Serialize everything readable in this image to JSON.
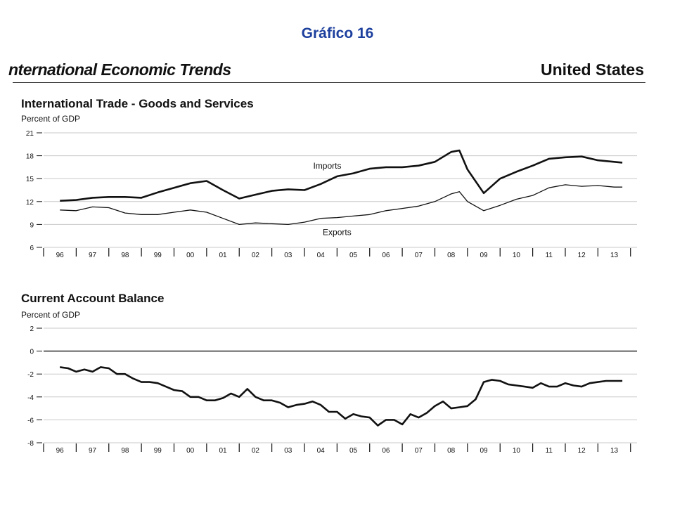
{
  "slide": {
    "title": "Gráfico 16"
  },
  "header": {
    "left": "nternational Economic Trends",
    "right": "United States"
  },
  "chart_data": [
    {
      "type": "line",
      "title": "International Trade - Goods and Services",
      "ylabel": "Percent of GDP",
      "ylim": [
        6,
        21
      ],
      "yticks": [
        6,
        9,
        12,
        15,
        18,
        21
      ],
      "xlim": [
        1995.5,
        2013.7
      ],
      "xticks": [
        "96",
        "97",
        "98",
        "99",
        "00",
        "01",
        "02",
        "03",
        "04",
        "05",
        "06",
        "07",
        "08",
        "09",
        "10",
        "11",
        "12",
        "13"
      ],
      "grid": true,
      "annotations": [
        {
          "text": "Imports",
          "x": 2004.2,
          "y": 16.3
        },
        {
          "text": "Exports",
          "x": 2004.5,
          "y": 7.6
        }
      ],
      "series": [
        {
          "name": "Imports",
          "style": "thick",
          "x": [
            1996.0,
            1996.5,
            1997.0,
            1997.5,
            1998.0,
            1998.5,
            1999.0,
            1999.5,
            2000.0,
            2000.5,
            2001.0,
            2001.5,
            2002.0,
            2002.5,
            2003.0,
            2003.5,
            2004.0,
            2004.5,
            2005.0,
            2005.5,
            2006.0,
            2006.5,
            2007.0,
            2007.5,
            2008.0,
            2008.25,
            2008.5,
            2009.0,
            2009.5,
            2010.0,
            2010.5,
            2011.0,
            2011.5,
            2012.0,
            2012.5,
            2013.0,
            2013.25
          ],
          "y": [
            12.1,
            12.2,
            12.5,
            12.6,
            12.6,
            12.5,
            13.2,
            13.8,
            14.4,
            14.7,
            13.5,
            12.4,
            12.9,
            13.4,
            13.6,
            13.5,
            14.3,
            15.3,
            15.7,
            16.3,
            16.5,
            16.5,
            16.7,
            17.2,
            18.5,
            18.7,
            16.2,
            13.1,
            15.0,
            15.9,
            16.7,
            17.6,
            17.8,
            17.9,
            17.4,
            17.2,
            17.1
          ]
        },
        {
          "name": "Exports",
          "style": "thin",
          "x": [
            1996.0,
            1996.5,
            1997.0,
            1997.5,
            1998.0,
            1998.5,
            1999.0,
            1999.5,
            2000.0,
            2000.5,
            2001.0,
            2001.5,
            2002.0,
            2002.5,
            2003.0,
            2003.5,
            2004.0,
            2004.5,
            2005.0,
            2005.5,
            2006.0,
            2006.5,
            2007.0,
            2007.5,
            2008.0,
            2008.25,
            2008.5,
            2009.0,
            2009.5,
            2010.0,
            2010.5,
            2011.0,
            2011.5,
            2012.0,
            2012.5,
            2013.0,
            2013.25
          ],
          "y": [
            10.9,
            10.8,
            11.3,
            11.2,
            10.5,
            10.3,
            10.3,
            10.6,
            10.9,
            10.6,
            9.8,
            9.0,
            9.2,
            9.1,
            9.0,
            9.3,
            9.8,
            9.9,
            10.1,
            10.3,
            10.8,
            11.1,
            11.4,
            12.0,
            13.0,
            13.3,
            12.0,
            10.8,
            11.5,
            12.3,
            12.8,
            13.8,
            14.2,
            14.0,
            14.1,
            13.9,
            13.9
          ]
        }
      ]
    },
    {
      "type": "line",
      "title": "Current Account Balance",
      "ylabel": "Percent of GDP",
      "ylim": [
        -8,
        2
      ],
      "yticks": [
        -8,
        -6,
        -4,
        -2,
        0,
        2
      ],
      "xlim": [
        1995.5,
        2013.7
      ],
      "xticks": [
        "96",
        "97",
        "98",
        "99",
        "00",
        "01",
        "02",
        "03",
        "04",
        "05",
        "06",
        "07",
        "08",
        "09",
        "10",
        "11",
        "12",
        "13"
      ],
      "grid": true,
      "zero_line": true,
      "series": [
        {
          "name": "Current Account Balance",
          "style": "thick",
          "x": [
            1996.0,
            1996.25,
            1996.5,
            1996.75,
            1997.0,
            1997.25,
            1997.5,
            1997.75,
            1998.0,
            1998.25,
            1998.5,
            1998.75,
            1999.0,
            1999.25,
            1999.5,
            1999.75,
            2000.0,
            2000.25,
            2000.5,
            2000.75,
            2001.0,
            2001.25,
            2001.5,
            2001.75,
            2002.0,
            2002.25,
            2002.5,
            2002.75,
            2003.0,
            2003.25,
            2003.5,
            2003.75,
            2004.0,
            2004.25,
            2004.5,
            2004.75,
            2005.0,
            2005.25,
            2005.5,
            2005.75,
            2006.0,
            2006.25,
            2006.5,
            2006.75,
            2007.0,
            2007.25,
            2007.5,
            2007.75,
            2008.0,
            2008.25,
            2008.5,
            2008.75,
            2009.0,
            2009.25,
            2009.5,
            2009.75,
            2010.0,
            2010.25,
            2010.5,
            2010.75,
            2011.0,
            2011.25,
            2011.5,
            2011.75,
            2012.0,
            2012.25,
            2012.5,
            2012.75,
            2013.0,
            2013.25
          ],
          "y": [
            -1.4,
            -1.5,
            -1.8,
            -1.6,
            -1.8,
            -1.4,
            -1.5,
            -2.0,
            -2.0,
            -2.4,
            -2.7,
            -2.7,
            -2.8,
            -3.1,
            -3.4,
            -3.5,
            -4.0,
            -4.0,
            -4.3,
            -4.3,
            -4.1,
            -3.7,
            -4.0,
            -3.3,
            -4.0,
            -4.3,
            -4.3,
            -4.5,
            -4.9,
            -4.7,
            -4.6,
            -4.4,
            -4.7,
            -5.3,
            -5.3,
            -5.9,
            -5.5,
            -5.7,
            -5.8,
            -6.5,
            -6.0,
            -6.0,
            -6.4,
            -5.5,
            -5.8,
            -5.4,
            -4.8,
            -4.4,
            -5.0,
            -4.9,
            -4.8,
            -4.2,
            -2.7,
            -2.5,
            -2.6,
            -2.9,
            -3.0,
            -3.1,
            -3.2,
            -2.8,
            -3.1,
            -3.1,
            -2.8,
            -3.0,
            -3.1,
            -2.8,
            -2.7,
            -2.6,
            -2.6,
            -2.6
          ]
        }
      ]
    }
  ]
}
